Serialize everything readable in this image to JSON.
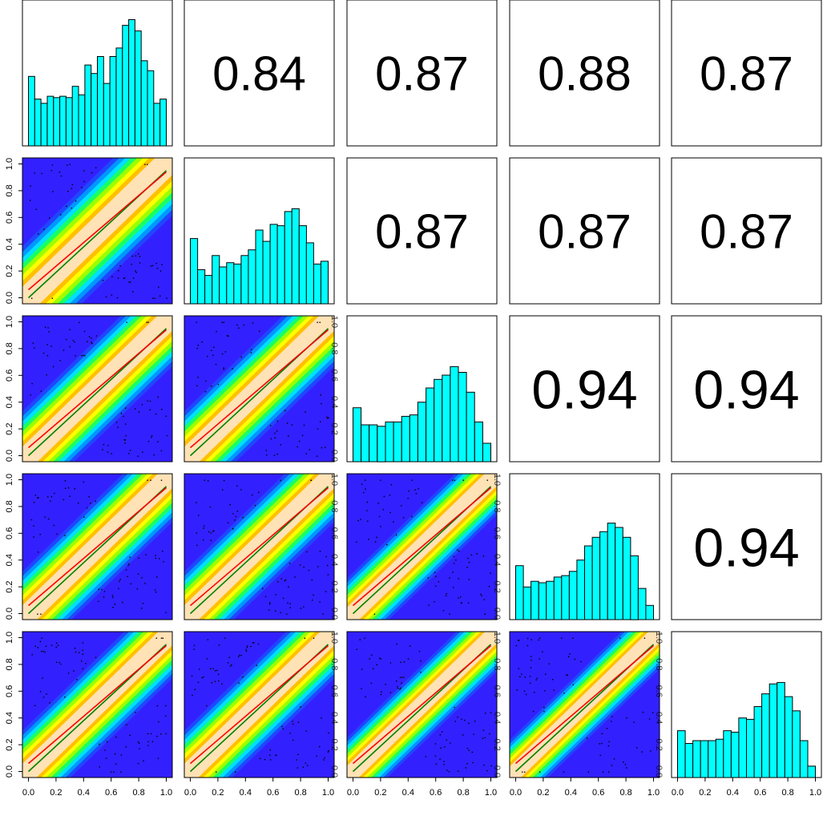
{
  "chart_data": {
    "type": "pairs-matrix",
    "n": 5,
    "correlations": [
      {
        "row": 0,
        "col": 1,
        "value": "0.84"
      },
      {
        "row": 0,
        "col": 2,
        "value": "0.87"
      },
      {
        "row": 0,
        "col": 3,
        "value": "0.88"
      },
      {
        "row": 0,
        "col": 4,
        "value": "0.87"
      },
      {
        "row": 1,
        "col": 2,
        "value": "0.87"
      },
      {
        "row": 1,
        "col": 3,
        "value": "0.87"
      },
      {
        "row": 1,
        "col": 4,
        "value": "0.87"
      },
      {
        "row": 2,
        "col": 3,
        "value": "0.94"
      },
      {
        "row": 2,
        "col": 4,
        "value": "0.94"
      },
      {
        "row": 3,
        "col": 4,
        "value": "0.94"
      }
    ],
    "histograms": [
      [
        0.49,
        0.33,
        0.3,
        0.35,
        0.34,
        0.35,
        0.34,
        0.42,
        0.36,
        0.57,
        0.51,
        0.63,
        0.44,
        0.63,
        0.69,
        0.85,
        0.89,
        0.81,
        0.6,
        0.53,
        0.3,
        0.33
      ],
      [
        0.46,
        0.24,
        0.2,
        0.34,
        0.26,
        0.29,
        0.28,
        0.34,
        0.38,
        0.52,
        0.44,
        0.56,
        0.55,
        0.65,
        0.67,
        0.55,
        0.43,
        0.28,
        0.3
      ],
      [
        0.38,
        0.26,
        0.26,
        0.25,
        0.28,
        0.28,
        0.32,
        0.33,
        0.42,
        0.52,
        0.58,
        0.61,
        0.67,
        0.63,
        0.49,
        0.28,
        0.13
      ],
      [
        0.38,
        0.23,
        0.27,
        0.26,
        0.27,
        0.3,
        0.31,
        0.34,
        0.42,
        0.52,
        0.58,
        0.62,
        0.68,
        0.65,
        0.58,
        0.45,
        0.22,
        0.1
      ],
      [
        0.33,
        0.24,
        0.26,
        0.26,
        0.26,
        0.27,
        0.33,
        0.32,
        0.42,
        0.41,
        0.5,
        0.59,
        0.66,
        0.67,
        0.57,
        0.47,
        0.26,
        0.08
      ]
    ],
    "hist_x_range": [
      0,
      1
    ],
    "scatter_axis_range": [
      0,
      1
    ],
    "tick_labels": [
      "0.0",
      "0.2",
      "0.4",
      "0.6",
      "0.8",
      "1.0"
    ],
    "fit_lines": {
      "red": {
        "color": "#ff0000",
        "intercept": 0.06,
        "slope": 0.88
      },
      "green": {
        "color": "#008000",
        "intercept": 0.0,
        "slope": 0.95
      }
    },
    "density_band_width": [
      0.4,
      0.4,
      0.3,
      0.27,
      0.25
    ],
    "grid": false,
    "legend": "none"
  },
  "colors": {
    "histogram_fill": "#00ffff",
    "histogram_stroke": "#000000",
    "correlation_text": "#000000",
    "density_ramp": [
      "#3320ff",
      "#1e4bff",
      "#0097ff",
      "#00e0ff",
      "#19ff62",
      "#9cff00",
      "#ffff00",
      "#ffc000",
      "#ffe2b5"
    ]
  },
  "icons": {}
}
